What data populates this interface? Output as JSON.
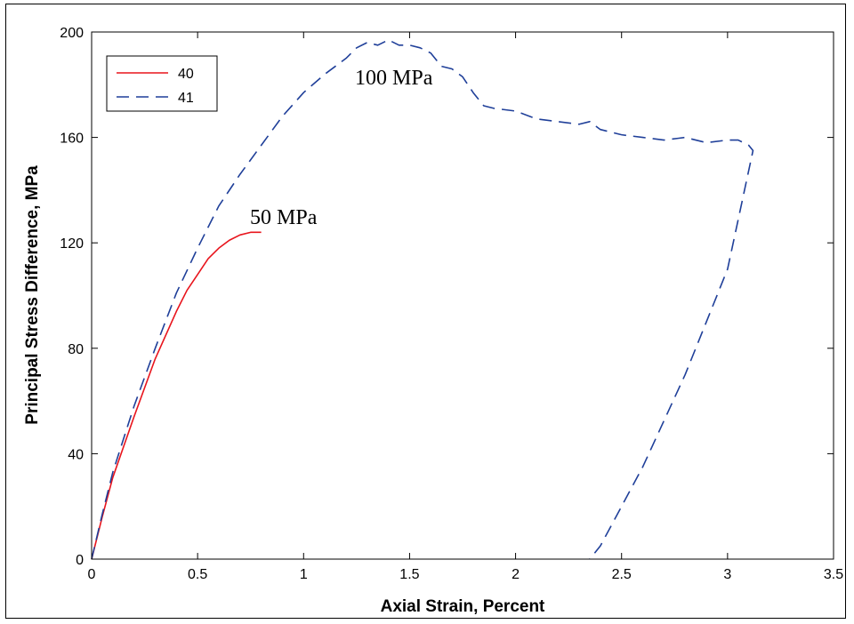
{
  "chart_data": {
    "type": "line",
    "xlabel": "Axial Strain, Percent",
    "ylabel": "Principal Stress Difference, MPa",
    "xlim": [
      0,
      3.5
    ],
    "ylim": [
      0,
      200
    ],
    "xticks": [
      0,
      0.5,
      1,
      1.5,
      2,
      2.5,
      3,
      3.5
    ],
    "xtick_labels": [
      "0",
      "0.5",
      "1",
      "1.5",
      "2",
      "2.5",
      "3",
      "3.5"
    ],
    "yticks": [
      0,
      40,
      80,
      120,
      160,
      200
    ],
    "ytick_labels": [
      "0",
      "40",
      "80",
      "120",
      "160",
      "200"
    ],
    "grid": false,
    "legend_position": "top-left",
    "series": [
      {
        "name": "40",
        "color": "#e8141c",
        "style": "solid",
        "x": [
          0,
          0.05,
          0.1,
          0.2,
          0.3,
          0.4,
          0.45,
          0.5,
          0.55,
          0.6,
          0.65,
          0.7,
          0.75,
          0.8
        ],
        "y": [
          0,
          16,
          31,
          54,
          76,
          94,
          102,
          108,
          114,
          118,
          121,
          123,
          124,
          124
        ]
      },
      {
        "name": "41",
        "color": "#1f3f99",
        "style": "dashed",
        "x": [
          0,
          0.05,
          0.1,
          0.2,
          0.3,
          0.4,
          0.5,
          0.6,
          0.7,
          0.8,
          0.9,
          1.0,
          1.1,
          1.2,
          1.25,
          1.3,
          1.35,
          1.4,
          1.45,
          1.5,
          1.55,
          1.6,
          1.65,
          1.7,
          1.75,
          1.8,
          1.85,
          1.9,
          2.0,
          2.1,
          2.2,
          2.3,
          2.35,
          2.4,
          2.5,
          2.6,
          2.7,
          2.8,
          2.9,
          3.0,
          3.05,
          3.1,
          3.12,
          3.0,
          2.8,
          2.6,
          2.4,
          2.35
        ],
        "y": [
          0,
          17,
          33,
          58,
          80,
          101,
          118,
          134,
          146,
          157,
          168,
          177,
          184,
          190,
          194,
          196,
          195,
          197,
          195,
          195,
          194,
          192,
          187,
          186,
          183,
          177,
          172,
          171,
          170,
          167,
          166,
          165,
          166,
          163,
          161,
          160,
          159,
          160,
          158,
          159,
          159,
          157,
          155,
          110,
          70,
          35,
          5,
          0
        ]
      }
    ],
    "annotations": [
      "100 MPa",
      "50 MPa"
    ]
  }
}
